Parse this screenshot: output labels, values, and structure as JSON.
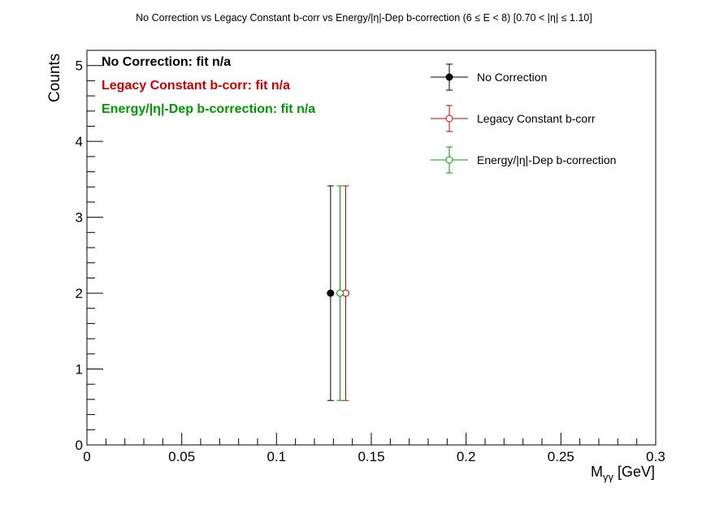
{
  "chart_data": {
    "type": "scatter",
    "title": "No Correction vs Legacy Constant b-corr vs Energy/|η|-Dep b-correction   (6 ≤ E < 8)   [0.70 < |η| ≤ 1.10]",
    "xlabel": "Mγγ [GeV]",
    "xlabel_main": "M",
    "xlabel_sub": "γγ",
    "xlabel_unit": " [GeV]",
    "ylabel": "Counts",
    "xlim": [
      0,
      0.3
    ],
    "ylim": [
      0,
      5.2
    ],
    "x_ticks": [
      0,
      0.05,
      0.1,
      0.15,
      0.2,
      0.25,
      0.3
    ],
    "x_tick_labels": [
      "0",
      "0.05",
      "0.1",
      "0.15",
      "0.2",
      "0.25",
      "0.3"
    ],
    "y_ticks": [
      0,
      1,
      2,
      3,
      4,
      5
    ],
    "y_tick_labels": [
      "0",
      "1",
      "2",
      "3",
      "4",
      "5"
    ],
    "grid": false,
    "legend_position": "top-right",
    "series": [
      {
        "name": "No Correction",
        "color": "#000000",
        "marker": "filled-circle",
        "points": [
          {
            "x": 0.1285,
            "y": 2,
            "err_low": 1.414,
            "err_high": 1.414
          }
        ]
      },
      {
        "name": "Legacy Constant b-corr",
        "color": "#cc0000",
        "marker": "open-circle",
        "points": [
          {
            "x": 0.1365,
            "y": 2,
            "err_low": 1.414,
            "err_high": 1.414
          }
        ]
      },
      {
        "name": "Energy/|η|-Dep b-correction",
        "color": "#009900",
        "marker": "open-circle",
        "points": [
          {
            "x": 0.1335,
            "y": 2,
            "err_low": 1.414,
            "err_high": 1.414
          }
        ]
      }
    ],
    "annotations": [
      {
        "text": "No Correction: fit n/a",
        "color": "#000000"
      },
      {
        "text": "Legacy Constant b-corr: fit n/a",
        "color": "#cc0000"
      },
      {
        "text": "Energy/|η|-Dep b-correction: fit n/a",
        "color": "#009900"
      }
    ]
  }
}
